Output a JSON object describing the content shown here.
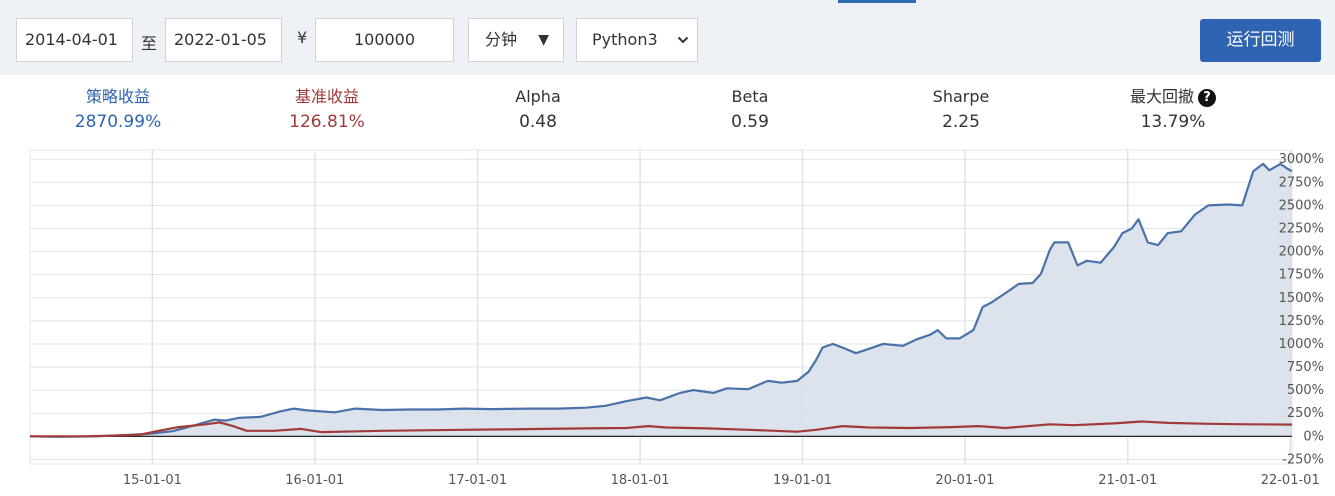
{
  "toolbar": {
    "start_date": "2014-04-01",
    "to_label": "至",
    "end_date": "2022-01-05",
    "currency_symbol": "¥",
    "capital": "100000",
    "frequency": "分钟",
    "language": "Python3",
    "run_label": "运行回测"
  },
  "stats": {
    "strategy_return": {
      "label": "策略收益",
      "value": "2870.99%",
      "color": "#2f64b3"
    },
    "benchmark_return": {
      "label": "基准收益",
      "value": "126.81%",
      "color": "#a33a3a"
    },
    "alpha": {
      "label": "Alpha",
      "value": "0.48"
    },
    "beta": {
      "label": "Beta",
      "value": "0.59"
    },
    "sharpe": {
      "label": "Sharpe",
      "value": "2.25"
    },
    "max_drawdown": {
      "label": "最大回撤",
      "value": "13.79%",
      "help_icon": "question-circle-icon"
    }
  },
  "chart_data": {
    "type": "area",
    "x_ticks": [
      "15-01-01",
      "16-01-01",
      "17-01-01",
      "18-01-01",
      "19-01-01",
      "20-01-01",
      "21-01-01",
      "22-01-01"
    ],
    "y_ticks": [
      "3000%",
      "2750%",
      "2500%",
      "2250%",
      "2000%",
      "1750%",
      "1500%",
      "1250%",
      "1000%",
      "750%",
      "500%",
      "250%",
      "0%",
      "-250%"
    ],
    "ylim": [
      -300,
      3100
    ],
    "xlim": [
      "2014-04-01",
      "2022-01-05"
    ],
    "grid": true,
    "series": [
      {
        "color": "#4a72a8",
        "fill": "#d9e0ea",
        "points": [
          [
            "2014-04-01",
            0
          ],
          [
            "2014-06-01",
            -5
          ],
          [
            "2014-09-01",
            0
          ],
          [
            "2014-12-01",
            20
          ],
          [
            "2015-01-01",
            30
          ],
          [
            "2015-02-15",
            55
          ],
          [
            "2015-03-15",
            90
          ],
          [
            "2015-04-20",
            140
          ],
          [
            "2015-05-20",
            180
          ],
          [
            "2015-06-15",
            170
          ],
          [
            "2015-07-15",
            200
          ],
          [
            "2015-09-01",
            210
          ],
          [
            "2015-10-15",
            270
          ],
          [
            "2015-11-15",
            300
          ],
          [
            "2015-12-15",
            280
          ],
          [
            "2016-01-15",
            270
          ],
          [
            "2016-02-15",
            260
          ],
          [
            "2016-04-01",
            300
          ],
          [
            "2016-06-01",
            285
          ],
          [
            "2016-08-01",
            290
          ],
          [
            "2016-10-01",
            290
          ],
          [
            "2016-12-01",
            300
          ],
          [
            "2017-02-01",
            295
          ],
          [
            "2017-05-01",
            300
          ],
          [
            "2017-07-01",
            300
          ],
          [
            "2017-09-01",
            310
          ],
          [
            "2017-10-15",
            330
          ],
          [
            "2017-12-01",
            380
          ],
          [
            "2018-01-15",
            420
          ],
          [
            "2018-02-15",
            390
          ],
          [
            "2018-04-01",
            470
          ],
          [
            "2018-05-01",
            500
          ],
          [
            "2018-06-15",
            470
          ],
          [
            "2018-07-15",
            520
          ],
          [
            "2018-09-01",
            510
          ],
          [
            "2018-10-15",
            600
          ],
          [
            "2018-11-15",
            580
          ],
          [
            "2018-12-20",
            600
          ],
          [
            "2019-01-15",
            700
          ],
          [
            "2019-02-01",
            830
          ],
          [
            "2019-02-15",
            960
          ],
          [
            "2019-03-10",
            1000
          ],
          [
            "2019-04-01",
            960
          ],
          [
            "2019-05-01",
            900
          ],
          [
            "2019-06-01",
            950
          ],
          [
            "2019-07-01",
            1000
          ],
          [
            "2019-08-15",
            980
          ],
          [
            "2019-09-15",
            1050
          ],
          [
            "2019-10-15",
            1100
          ],
          [
            "2019-11-01",
            1150
          ],
          [
            "2019-11-20",
            1060
          ],
          [
            "2019-12-20",
            1060
          ],
          [
            "2020-01-20",
            1150
          ],
          [
            "2020-02-10",
            1400
          ],
          [
            "2020-03-01",
            1450
          ],
          [
            "2020-04-01",
            1550
          ],
          [
            "2020-05-01",
            1650
          ],
          [
            "2020-06-01",
            1660
          ],
          [
            "2020-06-20",
            1760
          ],
          [
            "2020-07-10",
            2020
          ],
          [
            "2020-07-20",
            2100
          ],
          [
            "2020-08-20",
            2100
          ],
          [
            "2020-09-10",
            1850
          ],
          [
            "2020-10-01",
            1900
          ],
          [
            "2020-11-01",
            1880
          ],
          [
            "2020-12-01",
            2050
          ],
          [
            "2020-12-20",
            2200
          ],
          [
            "2021-01-10",
            2250
          ],
          [
            "2021-01-25",
            2350
          ],
          [
            "2021-02-15",
            2100
          ],
          [
            "2021-03-10",
            2070
          ],
          [
            "2021-04-01",
            2200
          ],
          [
            "2021-05-01",
            2220
          ],
          [
            "2021-06-01",
            2400
          ],
          [
            "2021-07-01",
            2500
          ],
          [
            "2021-08-15",
            2510
          ],
          [
            "2021-09-15",
            2500
          ],
          [
            "2021-10-10",
            2870
          ],
          [
            "2021-11-01",
            2950
          ],
          [
            "2021-11-15",
            2880
          ],
          [
            "2021-12-10",
            2950
          ],
          [
            "2021-12-25",
            2900
          ],
          [
            "2022-01-05",
            2870
          ]
        ]
      },
      {
        "color": "#a33a3a",
        "points": [
          [
            "2014-04-01",
            0
          ],
          [
            "2014-08-01",
            0
          ],
          [
            "2014-12-01",
            15
          ],
          [
            "2015-01-15",
            60
          ],
          [
            "2015-03-01",
            100
          ],
          [
            "2015-05-01",
            130
          ],
          [
            "2015-06-01",
            150
          ],
          [
            "2015-07-01",
            110
          ],
          [
            "2015-08-01",
            60
          ],
          [
            "2015-10-01",
            60
          ],
          [
            "2015-12-01",
            80
          ],
          [
            "2016-01-15",
            45
          ],
          [
            "2016-03-01",
            50
          ],
          [
            "2016-06-01",
            60
          ],
          [
            "2016-09-01",
            65
          ],
          [
            "2016-12-01",
            70
          ],
          [
            "2017-03-01",
            75
          ],
          [
            "2017-06-01",
            80
          ],
          [
            "2017-09-01",
            85
          ],
          [
            "2017-12-01",
            90
          ],
          [
            "2018-01-20",
            110
          ],
          [
            "2018-03-01",
            95
          ],
          [
            "2018-06-01",
            85
          ],
          [
            "2018-09-01",
            70
          ],
          [
            "2018-12-20",
            50
          ],
          [
            "2019-02-01",
            70
          ],
          [
            "2019-04-01",
            110
          ],
          [
            "2019-06-01",
            95
          ],
          [
            "2019-09-01",
            90
          ],
          [
            "2019-12-01",
            100
          ],
          [
            "2020-02-01",
            110
          ],
          [
            "2020-04-01",
            90
          ],
          [
            "2020-07-10",
            130
          ],
          [
            "2020-09-01",
            120
          ],
          [
            "2020-12-01",
            140
          ],
          [
            "2021-02-01",
            160
          ],
          [
            "2021-04-01",
            145
          ],
          [
            "2021-07-01",
            135
          ],
          [
            "2021-10-01",
            130
          ],
          [
            "2022-01-05",
            127
          ]
        ]
      }
    ]
  }
}
